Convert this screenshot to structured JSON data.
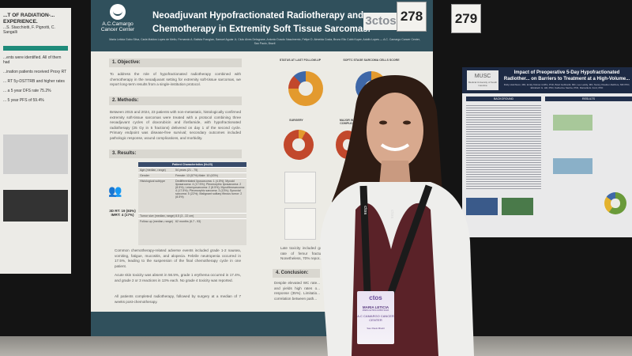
{
  "left_poster": {
    "title": "...T OF RADIATION-... EXPERIENCE.",
    "authors": "...S. Stacchiotti, F. Pignotti, C. Sangalli",
    "lines": [
      "...ents were identified. All of them had",
      "...ination patients received Proxy RT",
      "... RT 5y-DSTTRB and higher rates",
      "... a 5 year DFS rate 75.2%",
      "... 5 year PFS of 59.4%"
    ]
  },
  "main_poster": {
    "logo": {
      "name": "A.C.Camargo",
      "sub": "Cancer Center"
    },
    "title": "Neoadjuvant Hypofractionated Radiotherapy and Chemotherapy in Extremity Soft Tissue Sarcomas.",
    "authors": "Maria Leticia Gobo Silva, Carla Maldos Lopes de Mello, Fernando A. Batista Franglan, Samuel Aguiar Jr, Ciulo Alves Delagrane, Antonio Dusolo Nascimento, Felipe D. Almeida Costa, Bruno Elio Cobb Kuper, Adolfo Lopes — A.C. Camargo Cancer Center, Sao Paulo, Brazil",
    "conference_logo": "3ctos",
    "sections": {
      "objective_title": "1. Objective:",
      "objective_text": "To address the role of hypofractionated radiotherapy combined with chemotherapy in the neoadjuvant setting for extremity soft-tissue sarcomas, we report long-term results from a single-institution protocol.",
      "methods_title": "2. Methods:",
      "methods_text": "Between 2015 and 2024, 23 patients with non-metastatic, histologically confirmed extremity soft-tissue sarcomas were treated with a protocol combining three neoadjuvant cycles of doxorubicin and ifosfamide, with hypofractionated radiotherapy (25 Gy in 5 fractions) delivered on day 1 of the second cycle. Primary endpoint was disease-free survival; secondary outcomes included pathologic response, wound complications, and morbidity.",
      "results_title": "3. Results:",
      "rt_stats": "3D RT: 19 (83%) IMRT: 4 (17%)",
      "table_title": "Patient Characteristics (N=23)",
      "table_rows": [
        {
          "k": "Age (median, range)",
          "v": "54 years (21 - 75)"
        },
        {
          "k": "Gender",
          "v": "Female: 13 (57%) Male: 10 (43%)"
        },
        {
          "k": "Histological subtype",
          "v": "Dedifferentiated liposarcoma: 1 (4.5%); Myxoid liposarcoma: 4 (17.5%); Pleomorphic liposarcoma: 2 (8.5%); Leiomyosarcoma: 2 (8.5%); Myxofibrosarcoma: 4 (17.5%); Pleomorphic sarcoma: 3 (13%); Synovial sarcoma: 5 (22%); Malignant solitary fibrous tumor: 2 (8.5%)"
        },
        {
          "k": "Tumor size (median, range)",
          "v": "8.5 (3 - 22 cm)"
        },
        {
          "k": "Follow-up (median, range)",
          "v": "62 months (6.7 - 93)"
        }
      ],
      "bullets": [
        "Common chemotherapy-related adverse events included grade 1-2 nausea, vomiting, fatigue, mucositis, and alopecia. Febrile neutropenia occurred in 17.5%, leading to the suspension of the final chemotherapy cycle in one patient.",
        "Acute skin toxicity was absent in 56.5%, grade 1 erythema occurred in 17.4%, and grade 2 or 3 reactions in 13% each. No grade 4 toxicity was reported.",
        "All patients completed radiotherapy, followed by surgery at a median of 7 weeks post-chemotherapy."
      ],
      "chart1_title": "STATUS AT LAST FOLLOW-UP",
      "chart2_title": "SOFTC STAGE SARCOMA CELLS SCORE",
      "chart3_title": "SURGERY",
      "chart4_title": "MAJOR W... COMPLIC...",
      "late_text": "Late toxicity included gr... rate of femur fractu... Nonetheless, 70% repor...",
      "conclusion_title": "4. Conclusion:",
      "conclusion_text": "Despite elevated WC rate... and yields high rates o... response (35%). Limitatio... correlation between path..."
    },
    "donut_colors": {
      "orange": "#e39a2e",
      "red": "#c2482c",
      "blue": "#3f68a8"
    }
  },
  "board_numbers": [
    "278",
    "279"
  ],
  "right_poster": {
    "logo": "MUSC",
    "logo_sub": "Medical University of South Carolina",
    "title": "Impact of Preoperative 5-Day Hypofractionated Radiother... on Barriers to Treatment at a High-Volume...",
    "authors": "Ruby Hutchison, MD, Emily Kistner-Griffin, PhD, Brad Gebhardt, MD, Lee Leddy, MD, Nancy Klauber-DeMore, MD PhD, Elizabeth G. Hill, PhD, Katherine Sterba, PhD, Marcella E. Ford, PhD",
    "background": "BACKGROUND",
    "results": "RESULTS"
  },
  "badge": {
    "brand": "ctos",
    "name": "MARIA LETICIA",
    "sub": "MARIA LETICIA GOBO SILVA",
    "org": "A.C CAMARGO CANCER CENTER",
    "city": "Sao Paulo Brazil"
  },
  "lanyard_text": "ctos"
}
